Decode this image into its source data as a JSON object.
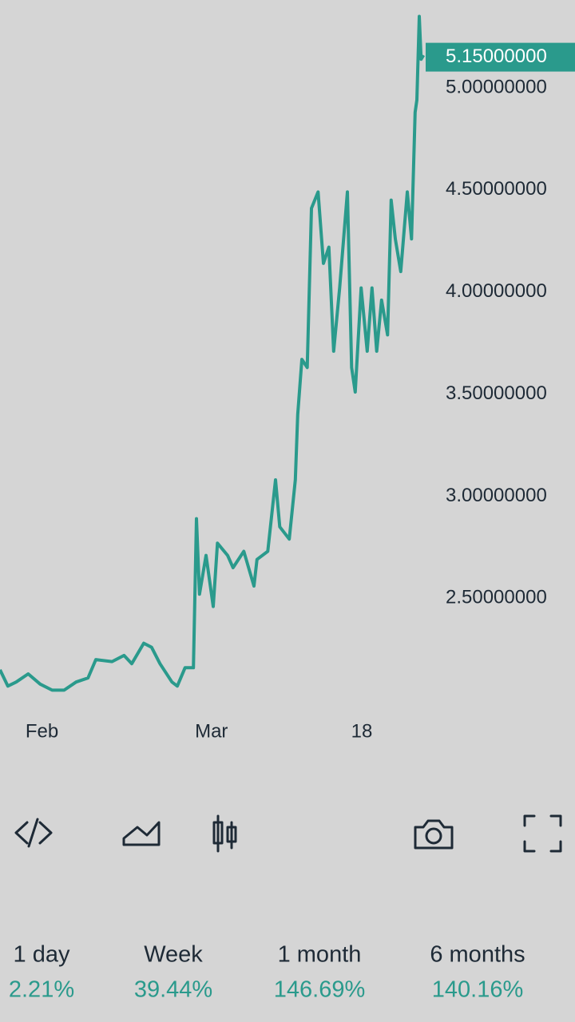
{
  "chart_data": {
    "type": "line",
    "x": [
      0,
      1.3,
      2.7,
      4.7,
      6.7,
      8.7,
      10.7,
      12.7,
      14.7,
      16,
      18.7,
      20.7,
      22,
      24,
      25.3,
      26.7,
      28.7,
      29.6,
      30.9,
      32.3,
      32.8,
      33.3,
      34.4,
      35.6,
      36.3,
      38,
      38.9,
      40.7,
      42.4,
      42.9,
      44.7,
      46,
      46.7,
      48.3,
      49.3,
      49.7,
      50.4,
      51.3,
      52,
      53.1,
      54,
      54.9,
      55.7,
      56.7,
      58,
      58.7,
      59.3,
      60.3,
      61.3,
      62.1,
      62.9,
      63.7,
      64.7,
      65.3,
      66,
      66.9,
      68,
      68.7,
      69.3,
      69.6,
      70,
      70.3,
      70.7
    ],
    "series": [
      {
        "color": "#2a9a8c",
        "values": [
          2.15,
          2.07,
          2.09,
          2.13,
          2.08,
          2.05,
          2.05,
          2.09,
          2.11,
          2.2,
          2.19,
          2.22,
          2.18,
          2.28,
          2.26,
          2.18,
          2.09,
          2.07,
          2.16,
          2.16,
          2.89,
          2.52,
          2.71,
          2.46,
          2.77,
          2.71,
          2.65,
          2.73,
          2.56,
          2.69,
          2.73,
          3.08,
          2.85,
          2.79,
          3.08,
          3.4,
          3.67,
          3.63,
          4.41,
          4.49,
          4.14,
          4.22,
          3.71,
          4.02,
          4.49,
          3.63,
          3.51,
          4.02,
          3.71,
          4.02,
          3.71,
          3.96,
          3.79,
          4.45,
          4.26,
          4.1,
          4.49,
          4.26,
          4.88,
          4.94,
          5.35,
          5.14,
          5.16
        ]
      }
    ],
    "xlim": [
      0,
      96
    ],
    "xticks": [
      {
        "value": 7,
        "label": "Feb"
      },
      {
        "value": 35.3,
        "label": "Mar"
      },
      {
        "value": 60.4,
        "label": "18"
      }
    ],
    "ylim": [
      1.95,
      5.43
    ],
    "yticks": [
      {
        "value": 2.5,
        "label": "2.50000000"
      },
      {
        "value": 3,
        "label": "3.00000000"
      },
      {
        "value": 3.5,
        "label": "3.50000000"
      },
      {
        "value": 4,
        "label": "4.00000000"
      },
      {
        "value": 4.5,
        "label": "4.50000000"
      },
      {
        "value": 5,
        "label": "5.00000000"
      }
    ],
    "price_tag": {
      "value": 5.15,
      "label": "5.15000000"
    }
  },
  "stats": [
    {
      "label": "1 day",
      "value": "2.21%"
    },
    {
      "label": "Week",
      "value": "39.44%"
    },
    {
      "label": "1 month",
      "value": "146.69%"
    },
    {
      "label": "6 months",
      "value": "140.16%"
    }
  ]
}
